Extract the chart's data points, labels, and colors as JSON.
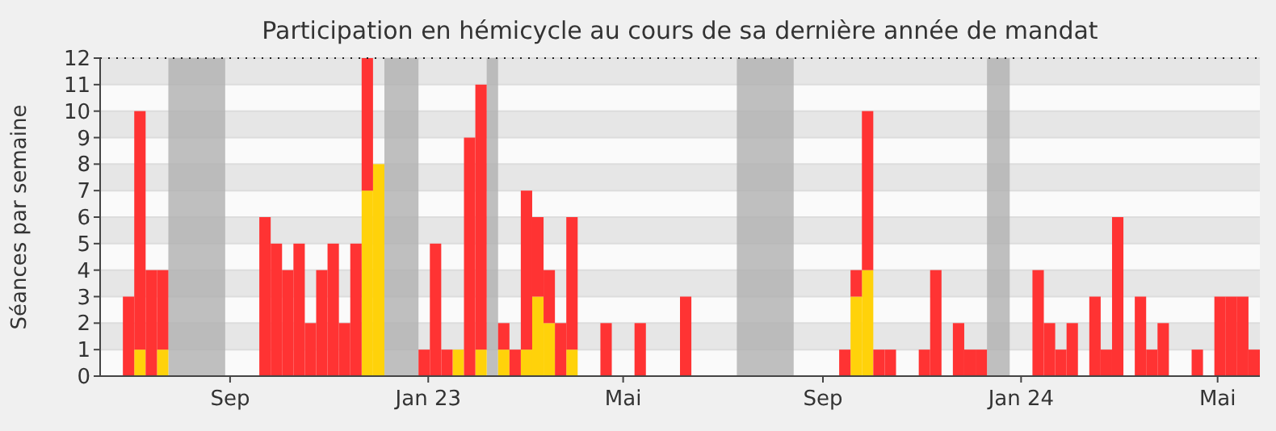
{
  "chart_data": {
    "type": "bar",
    "title": "Participation en hémicycle au cours de sa dernière année de mandat",
    "ylabel": "Séances par semaine",
    "stacked": true,
    "grid": "y",
    "x": [
      "2022-06-27",
      "2022-07-04",
      "2022-07-11",
      "2022-07-18",
      "2022-07-25",
      "2022-08-01",
      "2022-08-08",
      "2022-08-15",
      "2022-08-22",
      "2022-08-29",
      "2022-09-05",
      "2022-09-12",
      "2022-09-19",
      "2022-09-26",
      "2022-10-03",
      "2022-10-10",
      "2022-10-17",
      "2022-10-24",
      "2022-10-31",
      "2022-11-07",
      "2022-11-14",
      "2022-11-21",
      "2022-11-28",
      "2022-12-05",
      "2022-12-12",
      "2022-12-19",
      "2022-12-26",
      "2023-01-02",
      "2023-01-09",
      "2023-01-16",
      "2023-01-23",
      "2023-01-30",
      "2023-02-06",
      "2023-02-13",
      "2023-02-20",
      "2023-02-27",
      "2023-03-06",
      "2023-03-13",
      "2023-03-20",
      "2023-03-27",
      "2023-04-03",
      "2023-04-10",
      "2023-04-17",
      "2023-04-24",
      "2023-05-01",
      "2023-05-08",
      "2023-05-15",
      "2023-05-22",
      "2023-05-29",
      "2023-06-05",
      "2023-06-12",
      "2023-06-19",
      "2023-06-26",
      "2023-07-03",
      "2023-07-10",
      "2023-07-17",
      "2023-07-24",
      "2023-07-31",
      "2023-08-07",
      "2023-08-14",
      "2023-08-21",
      "2023-08-28",
      "2023-09-04",
      "2023-09-11",
      "2023-09-18",
      "2023-09-25",
      "2023-10-02",
      "2023-10-09",
      "2023-10-16",
      "2023-10-23",
      "2023-10-30",
      "2023-11-06",
      "2023-11-13",
      "2023-11-20",
      "2023-11-27",
      "2023-12-04",
      "2023-12-11",
      "2023-12-18",
      "2023-12-25",
      "2024-01-01",
      "2024-01-08",
      "2024-01-15",
      "2024-01-22",
      "2024-01-29",
      "2024-02-05",
      "2024-02-12",
      "2024-02-19",
      "2024-02-26",
      "2024-03-04",
      "2024-03-11",
      "2024-03-18",
      "2024-03-25",
      "2024-04-01",
      "2024-04-08",
      "2024-04-15",
      "2024-04-22",
      "2024-04-29",
      "2024-05-06",
      "2024-05-13",
      "2024-05-20"
    ],
    "series": [
      {
        "color": "#ffd20a",
        "values": [
          0,
          1,
          0,
          1,
          0,
          0,
          0,
          0,
          0,
          0,
          0,
          0,
          0,
          0,
          0,
          0,
          0,
          0,
          0,
          0,
          0,
          7,
          8,
          0,
          0,
          0,
          0,
          0,
          0,
          1,
          0,
          1,
          0,
          1,
          0,
          1,
          3,
          2,
          0,
          1,
          0,
          0,
          0,
          0,
          0,
          0,
          0,
          0,
          0,
          0,
          0,
          0,
          0,
          0,
          0,
          0,
          0,
          0,
          0,
          0,
          0,
          0,
          0,
          0,
          3,
          4,
          0,
          0,
          0,
          0,
          0,
          0,
          0,
          0,
          0,
          0,
          0,
          0,
          0,
          0,
          0,
          0,
          0,
          0,
          0,
          0,
          0,
          0,
          0,
          0,
          0,
          0,
          0,
          0,
          0,
          0,
          0,
          0,
          0,
          0
        ]
      },
      {
        "color": "#ff3333",
        "values": [
          3,
          9,
          4,
          3,
          0,
          0,
          0,
          0,
          0,
          0,
          0,
          0,
          6,
          5,
          4,
          5,
          2,
          4,
          5,
          2,
          5,
          5,
          0,
          0,
          0,
          0,
          1,
          5,
          1,
          0,
          9,
          10,
          0,
          1,
          1,
          6,
          3,
          2,
          2,
          5,
          0,
          0,
          2,
          0,
          0,
          2,
          0,
          0,
          0,
          3,
          0,
          0,
          0,
          0,
          0,
          0,
          0,
          0,
          0,
          0,
          0,
          0,
          0,
          1,
          1,
          6,
          1,
          1,
          0,
          0,
          1,
          4,
          0,
          2,
          1,
          1,
          0,
          0,
          0,
          0,
          4,
          2,
          1,
          2,
          0,
          3,
          1,
          6,
          0,
          3,
          1,
          2,
          0,
          0,
          1,
          0,
          3,
          3,
          3,
          1
        ]
      }
    ],
    "xlim": [
      "2022-06-13",
      "2024-05-27"
    ],
    "xticks": [
      {
        "value": "2022-09-01",
        "label": "Sep"
      },
      {
        "value": "2023-01-01",
        "label": "Jan 23"
      },
      {
        "value": "2023-05-01",
        "label": "Mai"
      },
      {
        "value": "2023-09-01",
        "label": "Sep"
      },
      {
        "value": "2024-01-01",
        "label": "Jan 24"
      },
      {
        "value": "2024-05-01",
        "label": "Mai"
      }
    ],
    "ylim": [
      0,
      12
    ],
    "yticks": [
      0,
      1,
      2,
      3,
      4,
      5,
      6,
      7,
      8,
      9,
      10,
      11,
      12
    ],
    "bands": [
      {
        "axis": "x",
        "from": "2022-07-25",
        "to": "2022-08-29",
        "color": "#b0b0b0"
      },
      {
        "axis": "x",
        "from": "2022-12-05",
        "to": "2022-12-26",
        "color": "#b0b0b0"
      },
      {
        "axis": "x",
        "from": "2023-02-06",
        "to": "2023-02-13",
        "color": "#b0b0b0"
      },
      {
        "axis": "x",
        "from": "2023-07-10",
        "to": "2023-08-14",
        "color": "#b0b0b0"
      },
      {
        "axis": "x",
        "from": "2023-12-11",
        "to": "2023-12-25",
        "color": "#b0b0b0"
      }
    ]
  }
}
